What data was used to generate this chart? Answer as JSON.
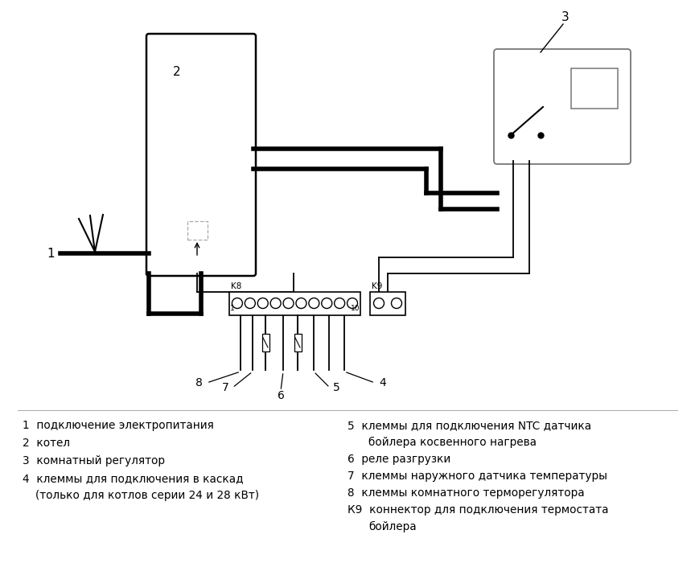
{
  "bg_color": "#ffffff",
  "line_color": "#000000",
  "legend_items": [
    {
      "num": "1",
      "text": "подключение электропитания",
      "cont": null
    },
    {
      "num": "2",
      "text": "котел",
      "cont": null
    },
    {
      "num": "3",
      "text": "комнатный регулятор",
      "cont": null
    },
    {
      "num": "4",
      "text": "клеммы для подключения в каскад",
      "cont": "(только для котлов серии 24 и 28 кВт)"
    },
    {
      "num": "5",
      "text": "клеммы для подключения NTC датчика",
      "cont": "бойлера косвенного нагрева"
    },
    {
      "num": "6",
      "text": "реле разгрузки",
      "cont": null
    },
    {
      "num": "7",
      "text": "клеммы наружного датчика температуры",
      "cont": null
    },
    {
      "num": "8",
      "text": "клеммы комнатного терморегулятора",
      "cont": null
    },
    {
      "num": "К9",
      "text": "коннектор для подключения термостата",
      "cont": "бойлера"
    }
  ]
}
